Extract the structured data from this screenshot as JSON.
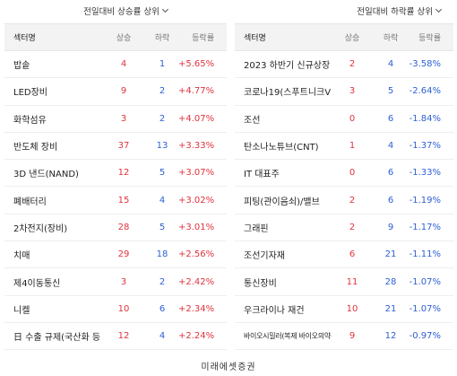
{
  "left": {
    "sort_label": "전일대비 상승률 상위",
    "headers": {
      "name": "섹터명",
      "up": "상승",
      "down": "하락",
      "rate": "등락률"
    },
    "rows": [
      {
        "name": "밥솥",
        "up": "4",
        "down": "1",
        "rate": "+5.65%"
      },
      {
        "name": "LED장비",
        "up": "9",
        "down": "2",
        "rate": "+4.77%"
      },
      {
        "name": "화학섬유",
        "up": "3",
        "down": "2",
        "rate": "+4.07%"
      },
      {
        "name": "반도체 장비",
        "up": "37",
        "down": "13",
        "rate": "+3.33%"
      },
      {
        "name": "3D 낸드(NAND)",
        "up": "12",
        "down": "5",
        "rate": "+3.07%"
      },
      {
        "name": "폐배터리",
        "up": "15",
        "down": "4",
        "rate": "+3.02%"
      },
      {
        "name": "2차전지(장비)",
        "up": "28",
        "down": "5",
        "rate": "+3.01%"
      },
      {
        "name": "치매",
        "up": "29",
        "down": "18",
        "rate": "+2.56%"
      },
      {
        "name": "제4이동통신",
        "up": "3",
        "down": "2",
        "rate": "+2.42%"
      },
      {
        "name": "니켈",
        "up": "10",
        "down": "6",
        "rate": "+2.34%"
      },
      {
        "name": "日 수출 규제(국산화 등)",
        "up": "12",
        "down": "4",
        "rate": "+2.24%"
      }
    ]
  },
  "right": {
    "sort_label": "전일대비 하락률 상위",
    "headers": {
      "name": "섹터명",
      "up": "상승",
      "down": "하락",
      "rate": "등락률"
    },
    "rows": [
      {
        "name": "2023 하반기 신규상장",
        "up": "2",
        "down": "4",
        "rate": "-3.58%"
      },
      {
        "name": "코로나19(스푸트니크V)",
        "up": "3",
        "down": "5",
        "rate": "-2.64%"
      },
      {
        "name": "조선",
        "up": "0",
        "down": "6",
        "rate": "-1.84%"
      },
      {
        "name": "탄소나노튜브(CNT)",
        "up": "1",
        "down": "4",
        "rate": "-1.37%"
      },
      {
        "name": "IT 대표주",
        "up": "0",
        "down": "6",
        "rate": "-1.33%"
      },
      {
        "name": "피팅(관이음쇠)/밸브",
        "up": "2",
        "down": "6",
        "rate": "-1.19%"
      },
      {
        "name": "그래핀",
        "up": "2",
        "down": "9",
        "rate": "-1.17%"
      },
      {
        "name": "조선기자재",
        "up": "6",
        "down": "21",
        "rate": "-1.11%"
      },
      {
        "name": "통신장비",
        "up": "11",
        "down": "28",
        "rate": "-1.07%"
      },
      {
        "name": "우크라이나 재건",
        "up": "10",
        "down": "21",
        "rate": "-1.07%"
      },
      {
        "name": "바이오시밀러(복제 바이오의약품",
        "up": "9",
        "down": "12",
        "rate": "-0.97%"
      }
    ]
  },
  "footer": {
    "source": "미래에셋증권"
  },
  "colors": {
    "up": "#e0333d",
    "down": "#2d5fd6",
    "header_bg": "#f3f3f3"
  }
}
